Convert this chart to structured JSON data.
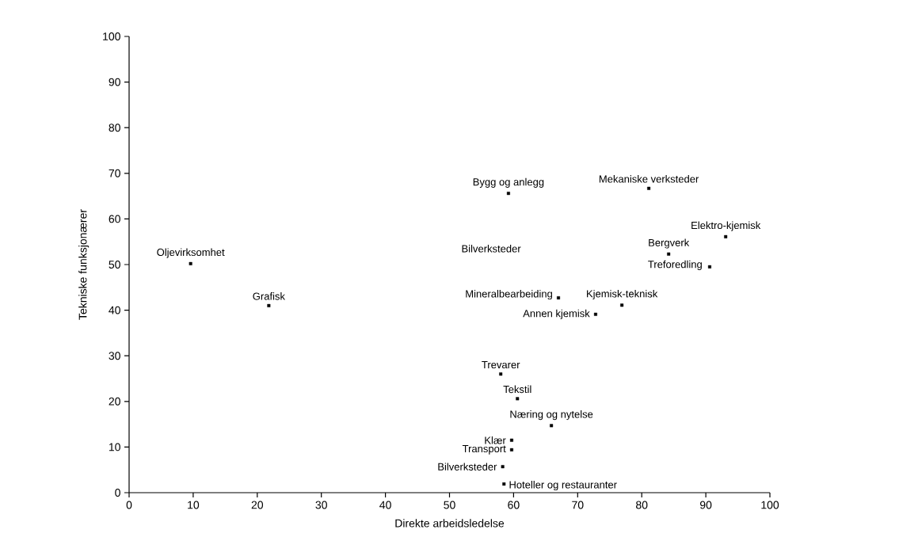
{
  "chart_data": {
    "type": "scatter",
    "xlabel": "Direkte arbeidsledelse",
    "ylabel": "Tekniske funksjonærer",
    "x": [
      9.6,
      21.8,
      59.2,
      81.1,
      93.1,
      84.2,
      90.6,
      76.9,
      67.0,
      72.8,
      58.0,
      60.6,
      65.9,
      59.7,
      59.7,
      58.3,
      58.5
    ],
    "values": [
      50.2,
      41.0,
      65.6,
      66.7,
      56.1,
      52.3,
      49.5,
      41.1,
      42.7,
      39.1,
      26.0,
      20.6,
      14.7,
      11.5,
      9.4,
      5.7,
      1.9
    ],
    "color": "#000000",
    "marker": "square",
    "xlim": [
      0,
      100
    ],
    "ylim": [
      0,
      100
    ],
    "xticks": [
      0,
      10,
      20,
      30,
      40,
      50,
      60,
      70,
      80,
      90,
      100
    ],
    "yticks": [
      0,
      10,
      20,
      30,
      40,
      50,
      60,
      70,
      80,
      90,
      100
    ],
    "annotations": [
      {
        "text": "Oljevirksomhet",
        "x": 9.6,
        "y": 50.2
      },
      {
        "text": "Grafisk",
        "x": 21.8,
        "y": 41.0
      },
      {
        "text": "Bygg og anlegg",
        "x": 59.2,
        "y": 65.6
      },
      {
        "text": "Mekaniske verksteder",
        "x": 81.1,
        "y": 66.7
      },
      {
        "text": "Elektro-kjemisk",
        "x": 93.1,
        "y": 56.1
      },
      {
        "text": "Bergverk",
        "x": 84.2,
        "y": 52.3
      },
      {
        "text": "Treforedling",
        "x": 90.6,
        "y": 49.5
      },
      {
        "text": "Kjemisk-teknisk",
        "x": 76.9,
        "y": 41.1
      },
      {
        "text": "Mineralbearbeiding",
        "x": 67.0,
        "y": 42.7
      },
      {
        "text": "Annen kjemisk",
        "x": 72.8,
        "y": 39.1
      },
      {
        "text": "Trevarer",
        "x": 58.0,
        "y": 26.0
      },
      {
        "text": "Tekstil",
        "x": 60.6,
        "y": 20.6
      },
      {
        "text": "Næring og nytelse",
        "x": 65.9,
        "y": 14.7
      },
      {
        "text": "Klær",
        "x": 59.7,
        "y": 11.5
      },
      {
        "text": "Transport",
        "x": 59.7,
        "y": 9.4
      },
      {
        "text": "Bilverksteder",
        "x": 58.3,
        "y": 5.7
      },
      {
        "text": "Hoteller og restauranter",
        "x": 58.5,
        "y": 1.9
      },
      "Bilverksteder"
    ]
  }
}
